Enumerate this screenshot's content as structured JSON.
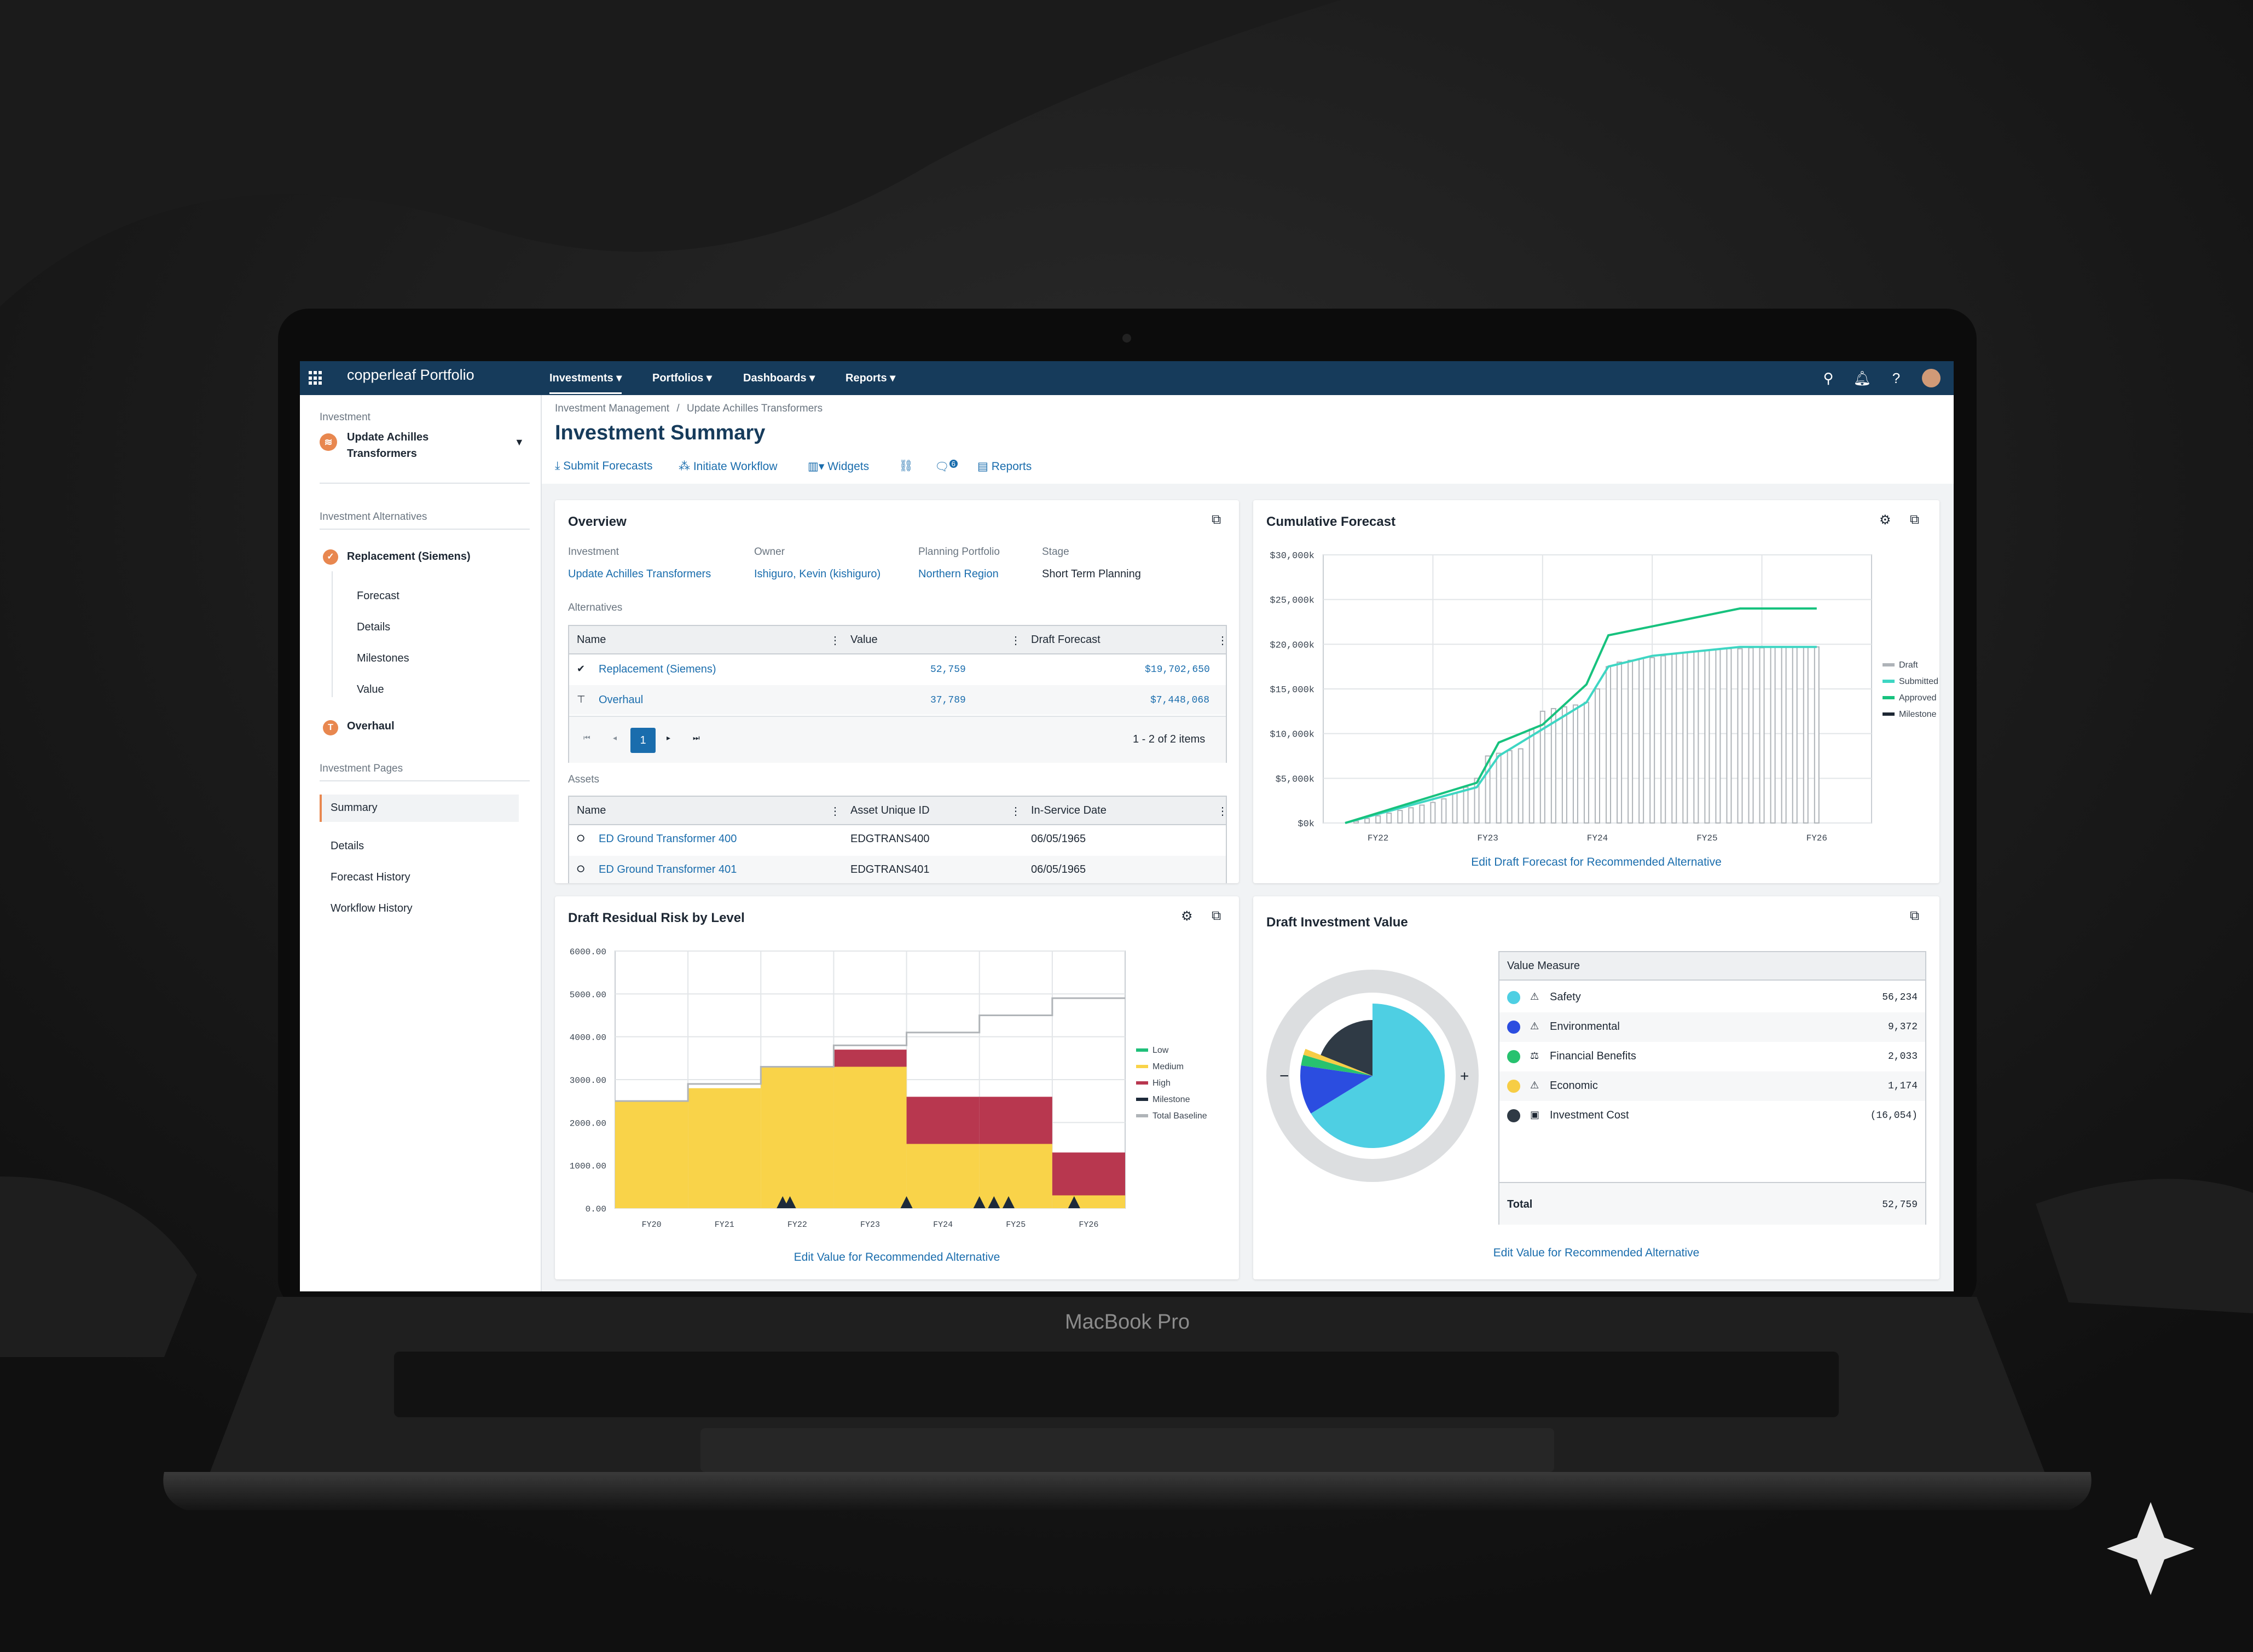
{
  "device_label": "MacBook Pro",
  "topbar": {
    "brand": "copperleaf Portfolio",
    "nav": [
      "Investments",
      "Portfolios",
      "Dashboards",
      "Reports"
    ],
    "icons": [
      "search-icon",
      "bell-icon",
      "help-icon",
      "avatar"
    ]
  },
  "sidebar": {
    "investment_label": "Investment",
    "investment_name_1": "Update Achilles",
    "investment_name_2": "Transformers",
    "alternatives_label": "Investment Alternatives",
    "alt_1": "Replacement (Siemens)",
    "alt_1_children": [
      "Forecast",
      "Details",
      "Milestones",
      "Value"
    ],
    "alt_2": "Overhaul",
    "pages_label": "Investment Pages",
    "pages": [
      "Summary",
      "Details",
      "Forecast History",
      "Workflow History"
    ]
  },
  "header": {
    "breadcrumb_1": "Investment Management",
    "breadcrumb_sep": "/",
    "breadcrumb_2": "Update Achilles Transformers",
    "title": "Investment Summary",
    "toolbar": {
      "submit": "Submit Forecasts",
      "workflow": "Initiate Workflow",
      "widgets": "Widgets",
      "reports": "Reports",
      "comment_count": "6"
    }
  },
  "overview": {
    "title": "Overview",
    "fields": [
      {
        "label": "Investment",
        "value": "Update Achilles Transformers"
      },
      {
        "label": "Owner",
        "value": "Ishiguro, Kevin (kishiguro)"
      },
      {
        "label": "Planning Portfolio",
        "value": "Northern Region"
      },
      {
        "label": "Stage",
        "value": "Short Term Planning"
      }
    ],
    "alternatives_label": "Alternatives",
    "alt_columns": [
      "Name",
      "Value",
      "Draft Forecast"
    ],
    "alt_rows": [
      {
        "name": "Replacement (Siemens)",
        "value": "52,759",
        "forecast": "$19,702,650"
      },
      {
        "name": "Overhaul",
        "value": "37,789",
        "forecast": "$7,448,068"
      }
    ],
    "pager_page": "1",
    "pager_info": "1 - 2 of 2 items",
    "assets_label": "Assets",
    "asset_columns": [
      "Name",
      "Asset Unique ID",
      "In-Service Date"
    ],
    "asset_rows": [
      {
        "name": "ED Ground Transformer 400",
        "id": "EDGTRANS400",
        "date": "06/05/1965"
      },
      {
        "name": "ED Ground Transformer 401",
        "id": "EDGTRANS401",
        "date": "06/05/1965"
      }
    ]
  },
  "cumulative": {
    "title": "Cumulative Forecast",
    "link": "Edit Draft Forecast for Recommended Alternative",
    "colors": {
      "draft": "#aeb3b8",
      "submitted": "#3ed6c3",
      "approved": "#17c27e",
      "milestone": "#1d2733"
    }
  },
  "residual": {
    "title": "Draft Residual Risk by Level",
    "link": "Edit Value for Recommended Alternative",
    "colors": {
      "low": "#1fbf7a",
      "medium": "#f9d349",
      "high": "#b8374f",
      "milestone": "#1d2a3a",
      "baseline": "#b0b4b8"
    }
  },
  "value": {
    "title": "Draft Investment Value",
    "header": "Value Measure",
    "rows": [
      {
        "name": "Safety",
        "value": "56,234",
        "color": "#4ecfe3",
        "icon": "warning-icon"
      },
      {
        "name": "Environmental",
        "value": "9,372",
        "color": "#2b4de0",
        "icon": "warning-icon"
      },
      {
        "name": "Financial Benefits",
        "value": "2,033",
        "color": "#27c26f",
        "icon": "scale-icon"
      },
      {
        "name": "Economic",
        "value": "1,174",
        "color": "#f7cd45",
        "icon": "warning-icon"
      },
      {
        "name": "Investment Cost",
        "value": "(16,054)",
        "color": "#2f3a45",
        "icon": "wallet-icon"
      }
    ],
    "total_label": "Total",
    "total_value": "52,759",
    "minus": "−",
    "plus": "+",
    "link": "Edit Value for Recommended Alternative"
  },
  "chart_data": [
    {
      "type": "bar",
      "title": "Cumulative Forecast",
      "categories": [
        "FY22",
        "FY23",
        "FY24",
        "FY25",
        "FY26"
      ],
      "ylim": [
        0,
        30000
      ],
      "yticks": [
        "$30,000k",
        "$25,000k",
        "$20,000k",
        "$15,000k",
        "$10,000k",
        "$5,000k",
        "$0k"
      ],
      "legend": [
        "Draft",
        "Submitted",
        "Approved",
        "Milestone"
      ],
      "series": [
        {
          "name": "Draft",
          "x": [
            0.3,
            0.4,
            0.5,
            0.6,
            0.7,
            0.8,
            0.9,
            1.0,
            1.1,
            1.2,
            1.3,
            1.4,
            1.5,
            1.6,
            1.7,
            1.8,
            1.9,
            2.0,
            2.1,
            2.2,
            2.3,
            2.4,
            2.5,
            2.6,
            2.7,
            2.8,
            2.9,
            3.0,
            3.1,
            3.2,
            3.3,
            3.4,
            3.5,
            3.6,
            3.7,
            3.8,
            3.9,
            4.0,
            4.1,
            4.2,
            4.3,
            4.4,
            4.5
          ],
          "values": [
            200,
            500,
            800,
            1100,
            1400,
            1700,
            2000,
            2300,
            2700,
            3300,
            4000,
            5000,
            7500,
            7800,
            8100,
            8300,
            10500,
            12500,
            12800,
            13000,
            13200,
            13500,
            15000,
            17500,
            18000,
            18200,
            18400,
            18500,
            18700,
            18900,
            19100,
            19200,
            19300,
            19400,
            19500,
            19500,
            19600,
            19600,
            19700,
            19700,
            19700,
            19700,
            19700
          ]
        },
        {
          "name": "Submitted",
          "x": [
            0.2,
            1.4,
            1.6,
            2.0,
            2.4,
            2.6,
            3.0,
            3.8,
            4.5
          ],
          "values": [
            0,
            4000,
            7500,
            10500,
            13500,
            17500,
            18700,
            19700,
            19700
          ]
        },
        {
          "name": "Approved",
          "x": [
            0.2,
            1.4,
            1.6,
            2.0,
            2.4,
            2.6,
            3.0,
            3.8,
            4.5
          ],
          "values": [
            0,
            4500,
            9000,
            11000,
            15500,
            21000,
            22000,
            24000,
            24000
          ]
        }
      ]
    },
    {
      "type": "area",
      "title": "Draft Residual Risk by Level",
      "categories": [
        "FY20",
        "FY21",
        "FY22",
        "FY23",
        "FY24",
        "FY25",
        "FY26"
      ],
      "ylim": [
        0,
        6000
      ],
      "yticks": [
        "6000.00",
        "5000.00",
        "4000.00",
        "3000.00",
        "2000.00",
        "1000.00",
        "0.00"
      ],
      "legend": [
        "Low",
        "Medium",
        "High",
        "Milestone",
        "Total Baseline"
      ],
      "series": [
        {
          "name": "Medium",
          "x": [
            0,
            1,
            2,
            3,
            4,
            5,
            6,
            7
          ],
          "values": [
            2500,
            2800,
            3300,
            3300,
            1500,
            1500,
            300,
            0
          ]
        },
        {
          "name": "High",
          "x": [
            0,
            1,
            2,
            3,
            4,
            5,
            6,
            7
          ],
          "values": [
            0,
            0,
            0,
            400,
            1100,
            1100,
            1000,
            0
          ]
        },
        {
          "name": "Total Baseline",
          "x": [
            0,
            1,
            2,
            3,
            4,
            5,
            6,
            7
          ],
          "values": [
            2500,
            2900,
            3300,
            3800,
            4100,
            4500,
            4900,
            5000
          ]
        },
        {
          "name": "Milestone",
          "x": [
            2.3,
            2.4,
            4.0,
            5.0,
            5.2,
            5.4,
            6.3
          ],
          "values": [
            0,
            0,
            0,
            0,
            0,
            0,
            0
          ]
        }
      ]
    },
    {
      "type": "pie",
      "title": "Draft Investment Value",
      "categories": [
        "Safety",
        "Environmental",
        "Financial Benefits",
        "Economic",
        "Investment Cost"
      ],
      "values": [
        56234,
        9372,
        2033,
        1174,
        16054
      ]
    }
  ]
}
